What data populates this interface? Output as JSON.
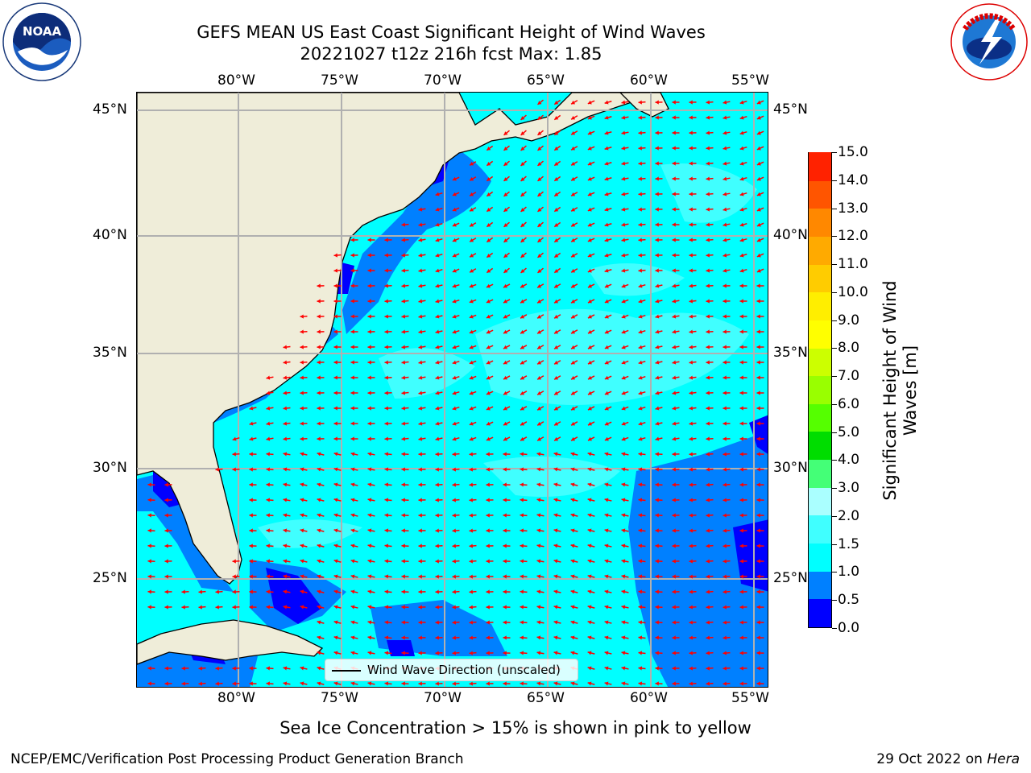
{
  "title": "GEFS MEAN US East Coast Significant Height of Wind Waves",
  "subtitle": "20221027 t12z 216h fcst   Max: 1.85",
  "logos": {
    "noaa": {
      "text": "NOAA",
      "ring_text": "NATIONAL OCEANIC AND ATMOSPHERIC ADMINISTRATION · U.S. DEPARTMENT OF COMMERCE"
    },
    "nws": {
      "ring_text": "NATIONAL WEATHER SERVICE"
    }
  },
  "map": {
    "lon_ticks": [
      "80°W",
      "75°W",
      "70°W",
      "65°W",
      "60°W",
      "55°W"
    ],
    "lat_ticks": [
      "45°N",
      "40°N",
      "35°N",
      "30°N",
      "25°N"
    ],
    "extent": {
      "lon": [
        -85,
        -54.5
      ],
      "lat": [
        20.5,
        46
      ]
    },
    "land_color": "#efedd9",
    "grid_color": "#b0b0b0",
    "arrow_color": "#ff0000",
    "legend_label": "Wind Wave Direction (unscaled)"
  },
  "colorbar": {
    "label": "Significant Height of Wind Waves [m]",
    "ticks": [
      "0.0",
      "0.5",
      "1.0",
      "1.5",
      "2.0",
      "3.0",
      "4.0",
      "5.0",
      "6.0",
      "7.0",
      "8.0",
      "9.0",
      "10.0",
      "11.0",
      "12.0",
      "13.0",
      "14.0",
      "15.0"
    ],
    "colors": [
      "#0000ff",
      "#0080ff",
      "#00ffff",
      "#40ffff",
      "#aaffff",
      "#44ff77",
      "#00dd00",
      "#55ff00",
      "#99ff00",
      "#ccff00",
      "#ffff00",
      "#ffee00",
      "#ffcc00",
      "#ffaa00",
      "#ff8800",
      "#ff5500",
      "#ff2200"
    ]
  },
  "caption": "Sea Ice Concentration > 15% is shown in pink to yellow",
  "footer_left": "NCEP/EMC/Verification Post Processing Product Generation Branch",
  "footer_right_date": "29 Oct 2022 on ",
  "footer_right_host": "Hera"
}
